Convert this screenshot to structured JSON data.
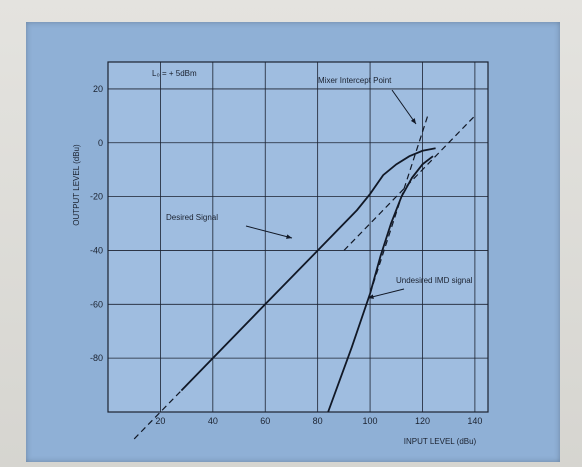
{
  "chart_data": {
    "type": "line",
    "title": "",
    "xlabel": "INPUT LEVEL (dBu)",
    "ylabel": "OUTPUT LEVEL (dBu)",
    "xlim": [
      0,
      145
    ],
    "ylim": [
      -100,
      30
    ],
    "x_ticks": [
      20,
      40,
      60,
      80,
      100,
      120,
      140
    ],
    "x_tick_labels": [
      "20",
      "40",
      "60",
      "80",
      "100",
      "120",
      "140"
    ],
    "y_ticks": [
      20,
      0,
      -20,
      -40,
      -60,
      -80
    ],
    "y_tick_labels": [
      "20",
      "0",
      "-20",
      "-40",
      "-60",
      "-80"
    ],
    "grid": true,
    "legend": "none",
    "series": [
      {
        "style": "solid",
        "x": [
          28,
          60,
          80,
          95,
          100,
          105,
          110,
          115,
          120,
          125
        ],
        "y": [
          -92,
          -60,
          -40,
          -25,
          -19,
          -12,
          -8,
          -5,
          -3,
          -2
        ]
      },
      {
        "style": "dashed",
        "x": [
          10,
          28
        ],
        "y": [
          -110,
          -92
        ]
      },
      {
        "style": "dashed",
        "x": [
          90,
          140
        ],
        "y": [
          -40,
          10
        ]
      },
      {
        "style": "solid",
        "x": [
          84,
          93,
          100,
          104,
          108,
          112,
          116,
          120,
          124
        ],
        "y": [
          -100,
          -76,
          -56,
          -42,
          -30,
          -20,
          -13,
          -8,
          -5
        ]
      },
      {
        "style": "dashed",
        "x": [
          100,
          122
        ],
        "y": [
          -56,
          10
        ]
      }
    ],
    "annotations": [
      {
        "text": "L₀ = + 5dBm"
      },
      {
        "text": "Mixer Intercept Point"
      },
      {
        "text": "Desired Signal"
      },
      {
        "text": "Undesired IMD signal"
      }
    ]
  }
}
